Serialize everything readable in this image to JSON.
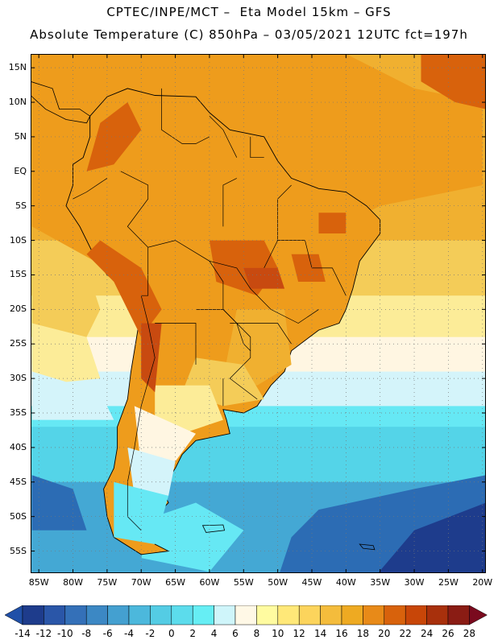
{
  "title_line1": "CPTEC/INPE/MCT –  Eta Model 15km – GFS",
  "title_line2": "Absolute Temperature (C) 850hPa – 03/05/2021 12UTC fct=197h",
  "lat_ticks": [
    {
      "label": "15N",
      "lat": 15
    },
    {
      "label": "10N",
      "lat": 10
    },
    {
      "label": "5N",
      "lat": 5
    },
    {
      "label": "EQ",
      "lat": 0
    },
    {
      "label": "5S",
      "lat": -5
    },
    {
      "label": "10S",
      "lat": -10
    },
    {
      "label": "15S",
      "lat": -15
    },
    {
      "label": "20S",
      "lat": -20
    },
    {
      "label": "25S",
      "lat": -25
    },
    {
      "label": "30S",
      "lat": -30
    },
    {
      "label": "35S",
      "lat": -35
    },
    {
      "label": "40S",
      "lat": -40
    },
    {
      "label": "45S",
      "lat": -45
    },
    {
      "label": "50S",
      "lat": -50
    },
    {
      "label": "55S",
      "lat": -55
    }
  ],
  "lon_ticks": [
    {
      "label": "85W",
      "lon": -85
    },
    {
      "label": "80W",
      "lon": -80
    },
    {
      "label": "75W",
      "lon": -75
    },
    {
      "label": "70W",
      "lon": -70
    },
    {
      "label": "65W",
      "lon": -65
    },
    {
      "label": "60W",
      "lon": -60
    },
    {
      "label": "55W",
      "lon": -55
    },
    {
      "label": "50W",
      "lon": -50
    },
    {
      "label": "45W",
      "lon": -45
    },
    {
      "label": "40W",
      "lon": -40
    },
    {
      "label": "35W",
      "lon": -35
    },
    {
      "label": "30W",
      "lon": -30
    },
    {
      "label": "25W",
      "lon": -25
    },
    {
      "label": "20W",
      "lon": -20
    }
  ],
  "map_extent": {
    "lon_min": -86.2,
    "lon_max": -19.5,
    "lat_min": -58.2,
    "lat_max": 17
  },
  "colorbar": {
    "labels": [
      "-14",
      "-12",
      "-10",
      "-8",
      "-6",
      "-4",
      "-2",
      "0",
      "2",
      "4",
      "6",
      "8",
      "10",
      "12",
      "14",
      "16",
      "18",
      "20",
      "22",
      "24",
      "26",
      "28"
    ],
    "colors": [
      "#1e3c8c",
      "#2a56a8",
      "#3470b8",
      "#3c88c4",
      "#44a0d0",
      "#4cb8dc",
      "#54cce4",
      "#5cdcec",
      "#66eef4",
      "#cff5fa",
      "#fff8e6",
      "#fffba0",
      "#ffe878",
      "#fcd45c",
      "#f4bc3c",
      "#eeaa22",
      "#e88a18",
      "#d8620c",
      "#c84608",
      "#a8300c",
      "#8a1c14"
    ],
    "under_color": "#2050a8",
    "over_color": "#7a0a1e"
  },
  "field_colors": {
    "tropical": "#ee9c1c",
    "warm": "#f0b030",
    "hot": "#d8620c",
    "very_hot": "#c84a10",
    "subtropical": "#f4cc58",
    "pale_yellow": "#fcec98",
    "cream": "#fff6e2",
    "pale_cyan": "#d4f4fa",
    "cyan": "#66e8f4",
    "mid_cyan": "#54d4e8",
    "blue": "#44a8d4",
    "deep_blue": "#2c6cb4",
    "navy": "#1e3c8c",
    "dark_red": "#b83e10"
  }
}
